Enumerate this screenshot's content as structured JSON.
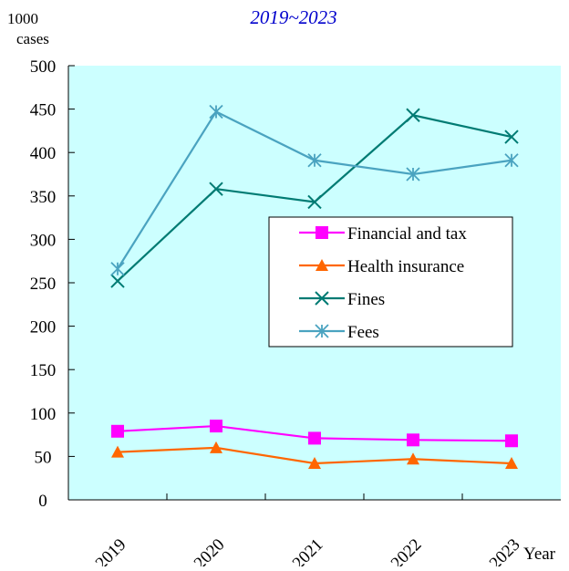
{
  "chart_data": {
    "type": "line",
    "subtitle": "2019~2023",
    "y_label": "1000 cases",
    "x_label": "Year",
    "categories": [
      "2019",
      "2020",
      "2021",
      "2022",
      "2023"
    ],
    "series": [
      {
        "name": "Financial and tax",
        "color": "#ff00ff",
        "marker": "square",
        "values": [
          79,
          85,
          71,
          69,
          68
        ]
      },
      {
        "name": "Health insurance",
        "color": "#ff6600",
        "marker": "triangle",
        "values": [
          55,
          60,
          42,
          47,
          42
        ]
      },
      {
        "name": "Fines",
        "color": "#007b73",
        "marker": "x",
        "values": [
          252,
          358,
          343,
          443,
          418
        ]
      },
      {
        "name": "Fees",
        "color": "#4aa3c0",
        "marker": "asterisk",
        "values": [
          266,
          447,
          391,
          375,
          391
        ]
      }
    ],
    "ylim": [
      0,
      500
    ],
    "yticks": [
      0,
      50,
      100,
      150,
      200,
      250,
      300,
      350,
      400,
      450,
      500
    ],
    "legend_position": "center right",
    "background": "#ccffff"
  }
}
